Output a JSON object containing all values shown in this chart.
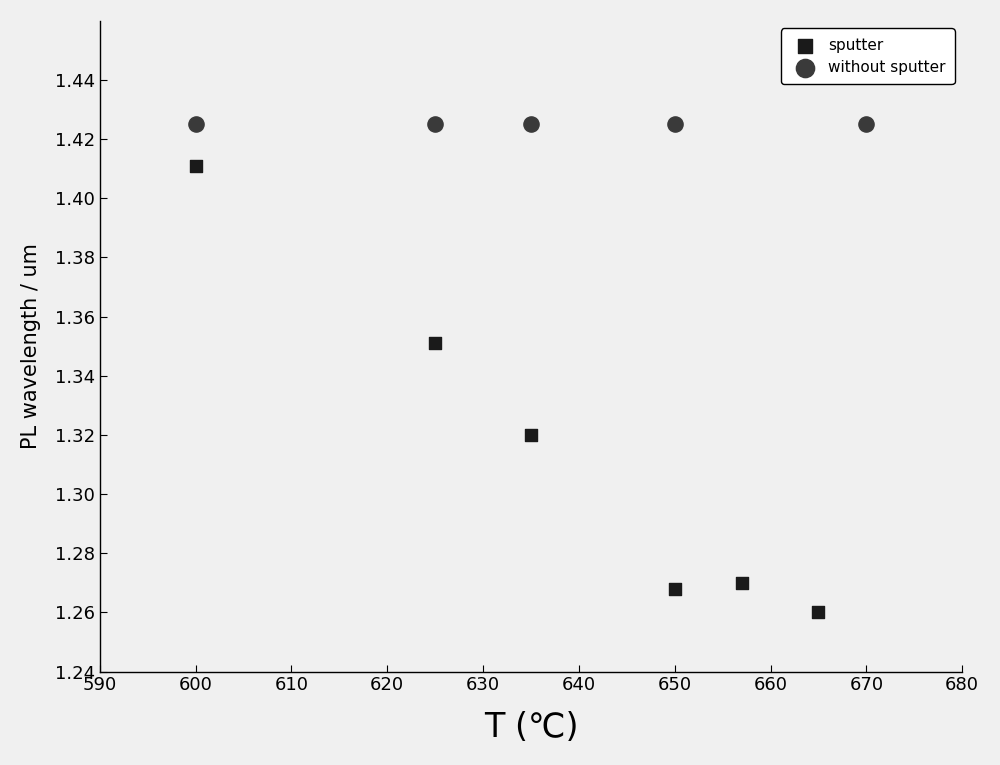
{
  "sputter_x": [
    600,
    625,
    635,
    650,
    657,
    665
  ],
  "sputter_y": [
    1.411,
    1.351,
    1.32,
    1.268,
    1.27,
    1.26
  ],
  "without_sputter_x": [
    600,
    625,
    635,
    650,
    670
  ],
  "without_sputter_y": [
    1.425,
    1.425,
    1.425,
    1.425,
    1.425
  ],
  "sputter_color": "#1a1a1a",
  "without_sputter_color": "#3a3a3a",
  "xlabel": "T (℃)",
  "ylabel": "PL wavelength / um",
  "xlim": [
    590,
    680
  ],
  "ylim": [
    1.24,
    1.46
  ],
  "xticks": [
    590,
    600,
    610,
    620,
    630,
    640,
    650,
    660,
    670,
    680
  ],
  "yticks": [
    1.24,
    1.26,
    1.28,
    1.3,
    1.32,
    1.34,
    1.36,
    1.38,
    1.4,
    1.42,
    1.44
  ],
  "legend_sputter": "sputter",
  "legend_without": "without sputter",
  "marker_size_sq": 80,
  "marker_size_circ": 120,
  "background_color": "#f0f0f0",
  "xlabel_fontsize": 24,
  "ylabel_fontsize": 15,
  "tick_fontsize": 13,
  "legend_fontsize": 11
}
